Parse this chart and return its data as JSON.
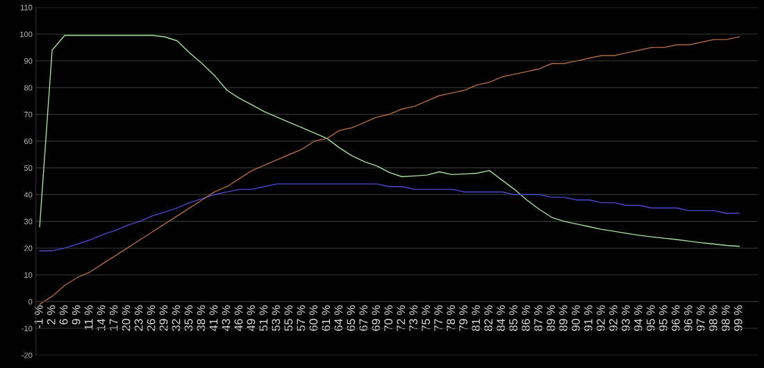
{
  "chart_data": {
    "type": "line",
    "categories": [
      "-1 %",
      "2 %",
      "6 %",
      "9 %",
      "11 %",
      "14 %",
      "17 %",
      "20 %",
      "23 %",
      "26 %",
      "29 %",
      "32 %",
      "35 %",
      "38 %",
      "41 %",
      "43 %",
      "46 %",
      "49 %",
      "51 %",
      "53 %",
      "55 %",
      "57 %",
      "60 %",
      "61 %",
      "64 %",
      "65 %",
      "67 %",
      "69 %",
      "70 %",
      "72 %",
      "73 %",
      "75 %",
      "77 %",
      "78 %",
      "79 %",
      "81 %",
      "82 %",
      "84 %",
      "85 %",
      "86 %",
      "87 %",
      "89 %",
      "89 %",
      "90 %",
      "91 %",
      "92 %",
      "92 %",
      "93 %",
      "94 %",
      "95 %",
      "95 %",
      "96 %",
      "96 %",
      "97 %",
      "98 %",
      "98 %",
      "99 %"
    ],
    "series": [
      {
        "color": "#a8e0a0",
        "values": [
          28,
          94,
          99.5,
          99.5,
          99.5,
          99.5,
          99.5,
          99.5,
          99.5,
          99.5,
          99,
          97.5,
          93,
          89,
          84.5,
          79,
          76,
          73.5,
          71,
          69,
          67,
          65,
          63,
          61,
          57.5,
          54.5,
          52.3,
          50.7,
          48.3,
          46.7,
          47,
          47.3,
          48.5,
          47.5,
          47.7,
          48,
          49,
          45.5,
          42,
          38,
          34.5,
          31.5,
          30,
          29,
          28,
          27,
          26.3,
          25.5,
          24.8,
          24.2,
          23.7,
          23.2,
          22.6,
          22,
          21.5,
          21,
          20.7
        ]
      },
      {
        "color": "#4a4ad0",
        "values": [
          19,
          19,
          20,
          21.5,
          23,
          25,
          26.5,
          28.5,
          30,
          32,
          33.5,
          35,
          37,
          38.5,
          40,
          41,
          42,
          42,
          43,
          44,
          44,
          44,
          44,
          44,
          44,
          44,
          44,
          44,
          43,
          43,
          42,
          42,
          42,
          42,
          41,
          41,
          41,
          41,
          40,
          40,
          40,
          39,
          39,
          38,
          38,
          37,
          37,
          36,
          36,
          35,
          35,
          35,
          34,
          34,
          34,
          33,
          33
        ]
      },
      {
        "color": "#b06a48",
        "values": [
          -1,
          2,
          6,
          9,
          11,
          14,
          17,
          20,
          23,
          26,
          29,
          32,
          35,
          38,
          41,
          43,
          46,
          49,
          51,
          53,
          55,
          57,
          60,
          61,
          64,
          65,
          67,
          69,
          70,
          72,
          73,
          75,
          77,
          78,
          79,
          81,
          82,
          84,
          85,
          86,
          87,
          89,
          89,
          90,
          91,
          92,
          92,
          93,
          94,
          95,
          95,
          96,
          96,
          97,
          98,
          98,
          99
        ]
      }
    ],
    "ylim": [
      -20,
      110
    ],
    "yticks": [
      -20,
      -10,
      0,
      10,
      20,
      30,
      40,
      50,
      60,
      70,
      80,
      90,
      100,
      110
    ],
    "grid": "y"
  }
}
